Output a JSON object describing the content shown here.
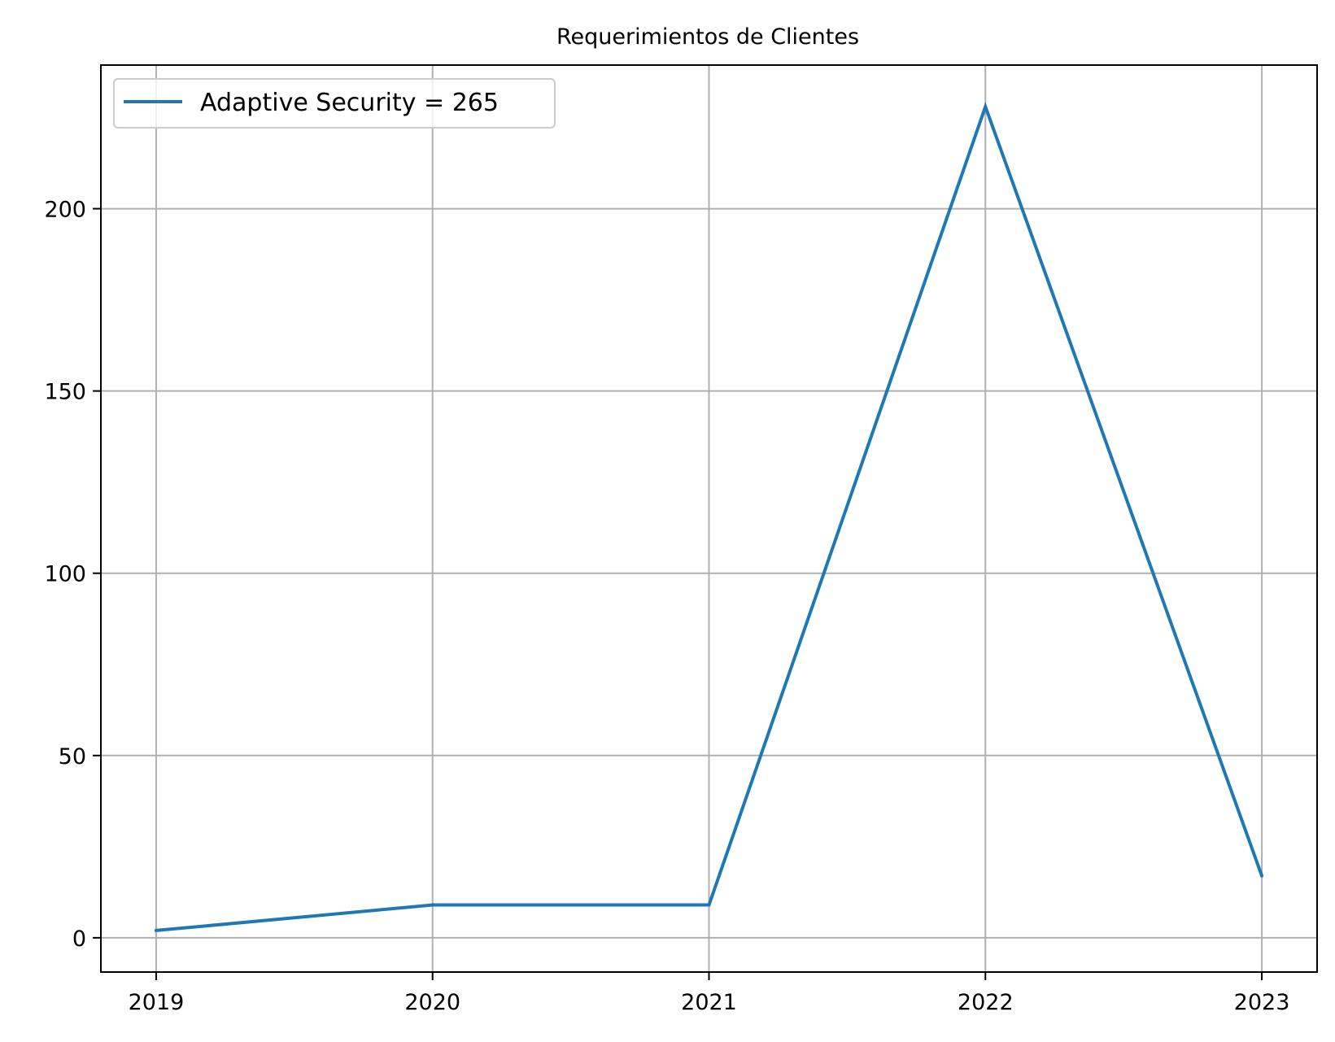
{
  "chart_data": {
    "type": "line",
    "title": "Requerimientos de Clientes",
    "xlabel": "",
    "ylabel": "",
    "x": [
      2019,
      2020,
      2021,
      2022,
      2023
    ],
    "x_tick_labels": [
      "2019",
      "2020",
      "2021",
      "2022",
      "2023"
    ],
    "y_ticks": [
      0,
      50,
      100,
      150,
      200
    ],
    "y_tick_labels": [
      "0",
      "50",
      "100",
      "150",
      "200"
    ],
    "xlim": [
      2018.8,
      2023.2
    ],
    "ylim": [
      -9.4,
      239.4
    ],
    "grid": true,
    "legend_position": "top-left",
    "series": [
      {
        "name": "Adaptive Security =  265",
        "color": "#1f77b4",
        "values": [
          2,
          9,
          9,
          228,
          17
        ]
      }
    ]
  }
}
